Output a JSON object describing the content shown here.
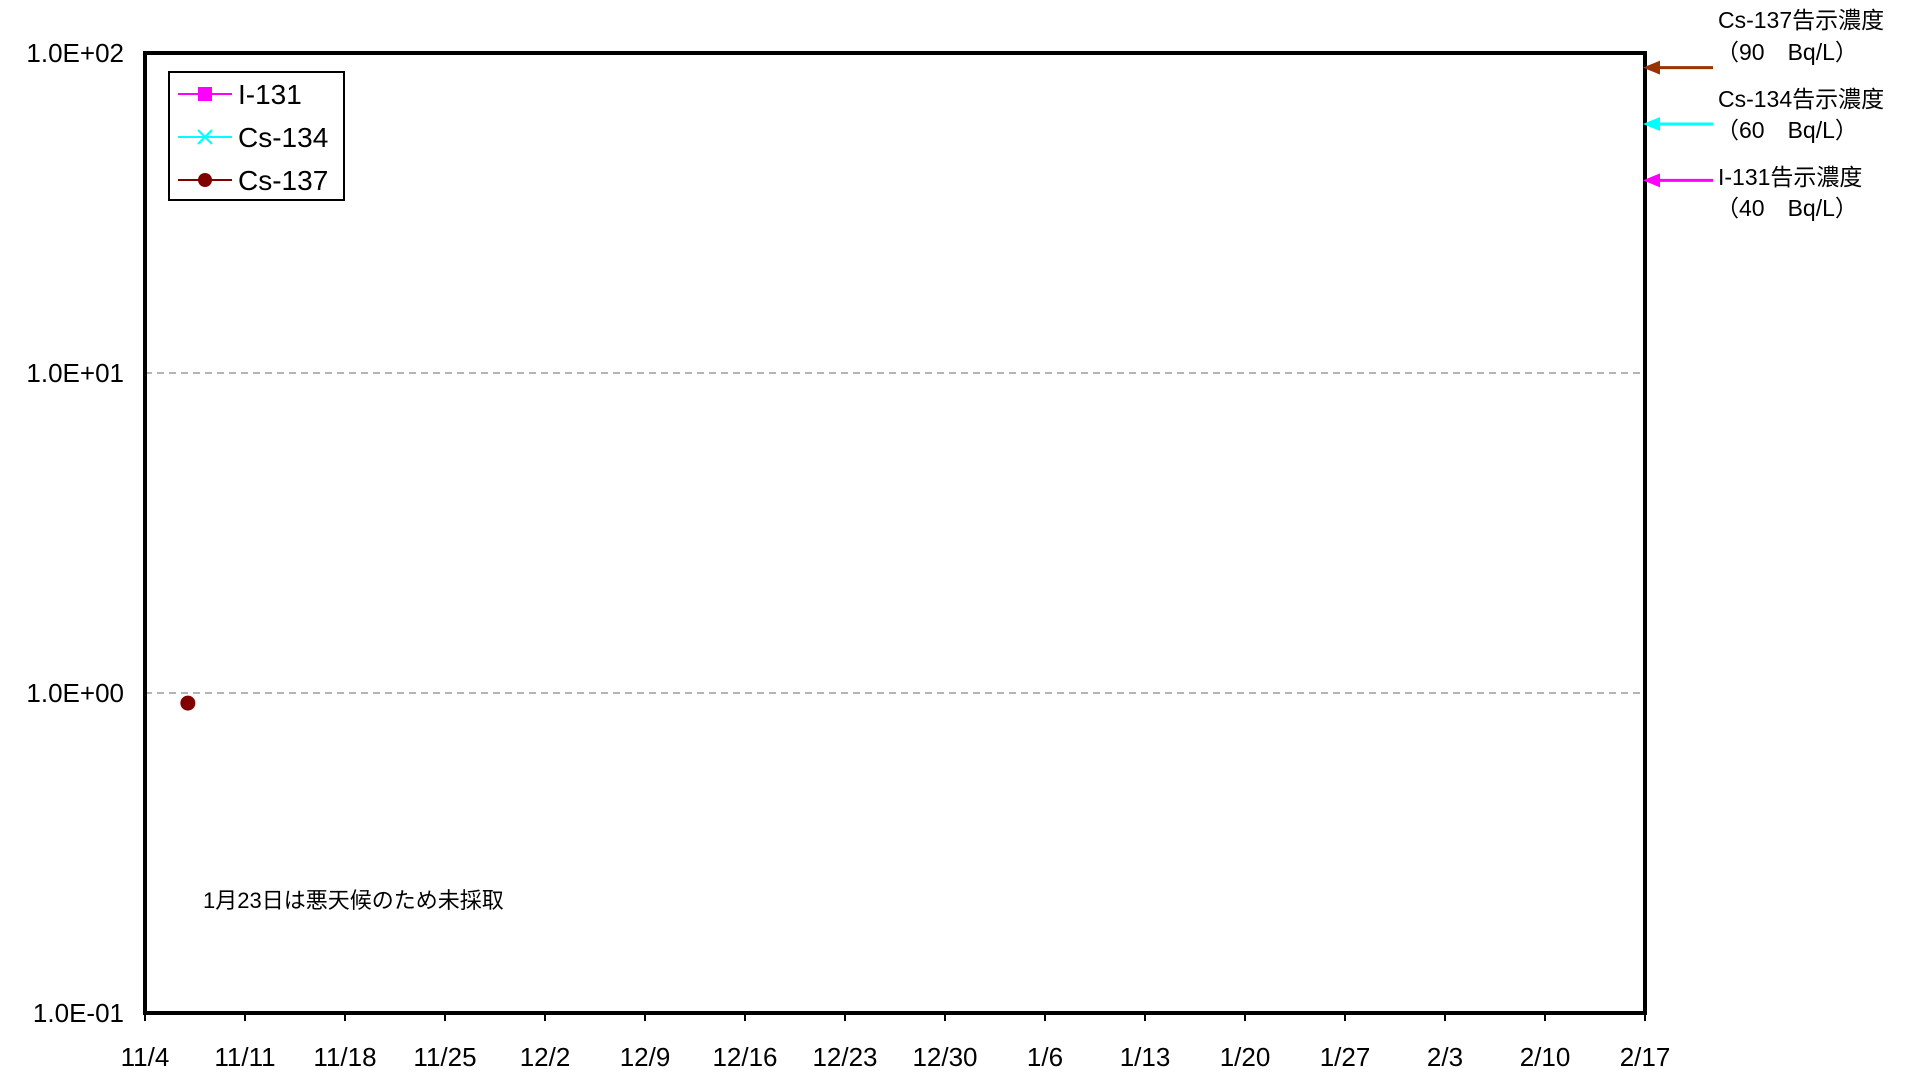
{
  "chart_data": {
    "type": "line",
    "yscale": "log",
    "ylim": [
      0.1,
      100
    ],
    "yticks": [
      {
        "value": 100,
        "label": "1.0E+02"
      },
      {
        "value": 10,
        "label": "1.0E+01"
      },
      {
        "value": 1,
        "label": "1.0E+00"
      },
      {
        "value": 0.1,
        "label": "1.0E-01"
      }
    ],
    "ygrid": [
      10,
      1
    ],
    "x_tick_labels": [
      "11/4",
      "11/11",
      "11/18",
      "11/25",
      "12/2",
      "12/9",
      "12/16",
      "12/23",
      "12/30",
      "1/6",
      "1/13",
      "1/20",
      "1/27",
      "2/3",
      "2/10",
      "2/17"
    ],
    "legend_position": "top-left",
    "series": [
      {
        "name": "I-131",
        "color": "#ff00ff",
        "marker": "square",
        "points": []
      },
      {
        "name": "Cs-134",
        "color": "#00ffff",
        "marker": "x",
        "points": []
      },
      {
        "name": "Cs-137",
        "color": "#800000",
        "marker": "circle",
        "points": [
          {
            "x": "11/7",
            "y": 0.93
          }
        ]
      }
    ],
    "reference_lines": [
      {
        "name": "Cs-137告示濃度",
        "value_label": "（90　Bq/L）",
        "value": 90,
        "color": "#993300"
      },
      {
        "name": "Cs-134告示濃度",
        "value_label": "（60　Bq/L）",
        "value": 60,
        "color": "#00ffff"
      },
      {
        "name": "I-131告示濃度",
        "value_label": "（40　Bq/L）",
        "value": 40,
        "color": "#ff00ff"
      }
    ],
    "annotation": "1月23日は悪天候のため未採取"
  }
}
